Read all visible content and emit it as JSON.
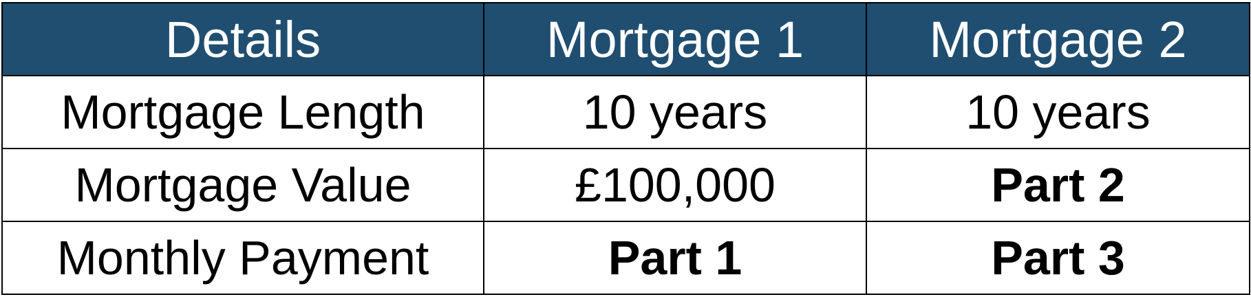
{
  "header": {
    "details": "Details",
    "mortgage1": "Mortgage 1",
    "mortgage2": "Mortgage 2"
  },
  "rows": [
    {
      "label": "Mortgage Length",
      "mortgage1": "10 years",
      "mortgage2": "10 years"
    },
    {
      "label": "Mortgage Value",
      "mortgage1": "£100,000",
      "mortgage2": "Part 2"
    },
    {
      "label": "Monthly Payment",
      "mortgage1": "Part 1",
      "mortgage2": "Part 3"
    }
  ],
  "colors": {
    "header_background": "#1f4e70",
    "header_text": "#ffffff",
    "border": "#000000"
  }
}
